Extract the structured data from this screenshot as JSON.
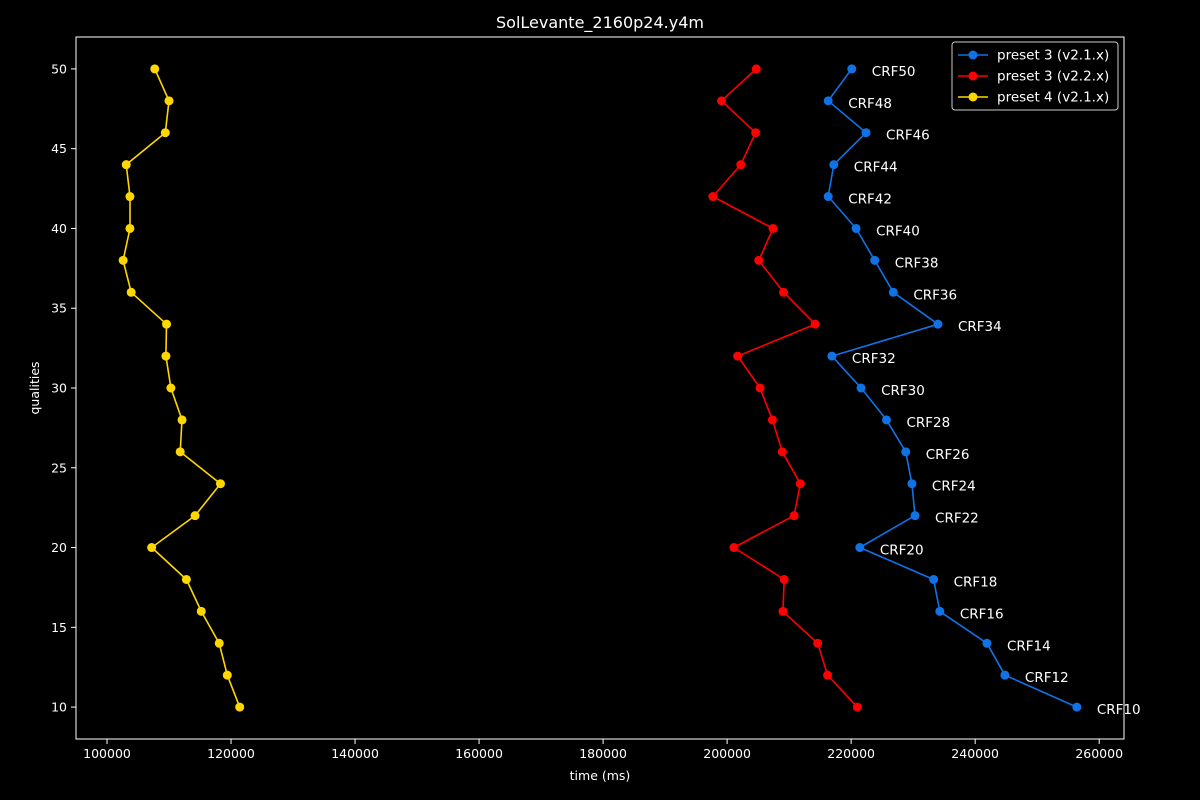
{
  "chart_data": {
    "type": "line",
    "title": "SolLevante_2160p24.y4m",
    "xlabel": "time (ms)",
    "ylabel": "qualities",
    "xlim": [
      95000,
      264000
    ],
    "ylim": [
      8,
      52
    ],
    "xticks": [
      100000,
      120000,
      140000,
      160000,
      180000,
      200000,
      220000,
      240000,
      260000
    ],
    "yticks": [
      10,
      15,
      20,
      25,
      30,
      35,
      40,
      45,
      50
    ],
    "grid": false,
    "legend_position": "top-right",
    "y": [
      50,
      48,
      46,
      44,
      42,
      40,
      38,
      36,
      34,
      32,
      30,
      28,
      26,
      24,
      22,
      20,
      18,
      16,
      14,
      12,
      10
    ],
    "point_labels": [
      "CRF50",
      "CRF48",
      "CRF46",
      "CRF44",
      "CRF42",
      "CRF40",
      "CRF38",
      "CRF36",
      "CRF34",
      "CRF32",
      "CRF30",
      "CRF28",
      "CRF26",
      "CRF24",
      "CRF22",
      "CRF20",
      "CRF18",
      "CRF16",
      "CRF14",
      "CRF12",
      "CRF10"
    ],
    "labeled_series": "preset 3 (v2.1.x)",
    "series": [
      {
        "name": "preset 3 (v2.1.x)",
        "color": "#0f73e6",
        "x": [
          220100,
          216300,
          222400,
          217200,
          216300,
          220800,
          223800,
          226800,
          234000,
          216900,
          221600,
          225700,
          228800,
          229800,
          230300,
          221400,
          233300,
          234300,
          241900,
          244800,
          256400
        ]
      },
      {
        "name": "preset 3 (v2.2.x)",
        "color": "#ff0000",
        "x": [
          204700,
          199100,
          204600,
          202200,
          197700,
          207400,
          205100,
          209100,
          214200,
          201700,
          205300,
          207300,
          208900,
          211800,
          210800,
          201100,
          209200,
          209000,
          214600,
          216200,
          221000
        ]
      },
      {
        "name": "preset 4 (v2.1.x)",
        "color": "#ffd700",
        "x": [
          107700,
          110000,
          109400,
          103100,
          103700,
          103700,
          102600,
          103900,
          109600,
          109500,
          110300,
          112100,
          111800,
          118300,
          114200,
          107200,
          112800,
          115200,
          118100,
          119400,
          121400
        ]
      }
    ]
  }
}
